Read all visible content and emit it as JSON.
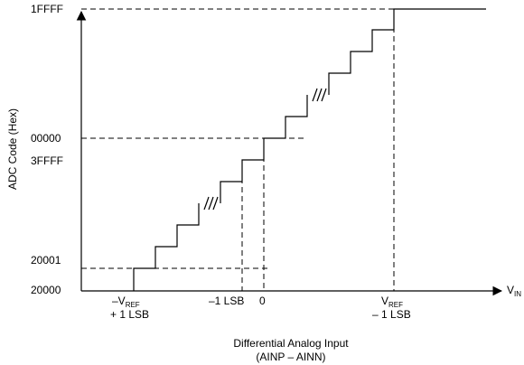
{
  "diagram": {
    "y_axis_title": "ADC Code (Hex)",
    "x_axis_title_line1": "Differential Analog Input",
    "x_axis_title_line2": "(AINP – AINN)",
    "v_in_main": "V",
    "v_in_sub": "IN",
    "y_labels": {
      "top": "1FFFF",
      "mid_upper": "00000",
      "mid_lower": "3FFFF",
      "low_upper": "20001",
      "bottom": "20000"
    },
    "x_labels": {
      "neg_vref_line1_prefix": "–V",
      "neg_vref_line1_sub": "REF",
      "neg_vref_line2": "+ 1 LSB",
      "minus_one_lsb": "–1 LSB",
      "zero": "0",
      "vref_line1_main": "V",
      "vref_line1_sub": "REF",
      "vref_line2": "– 1 LSB"
    }
  }
}
